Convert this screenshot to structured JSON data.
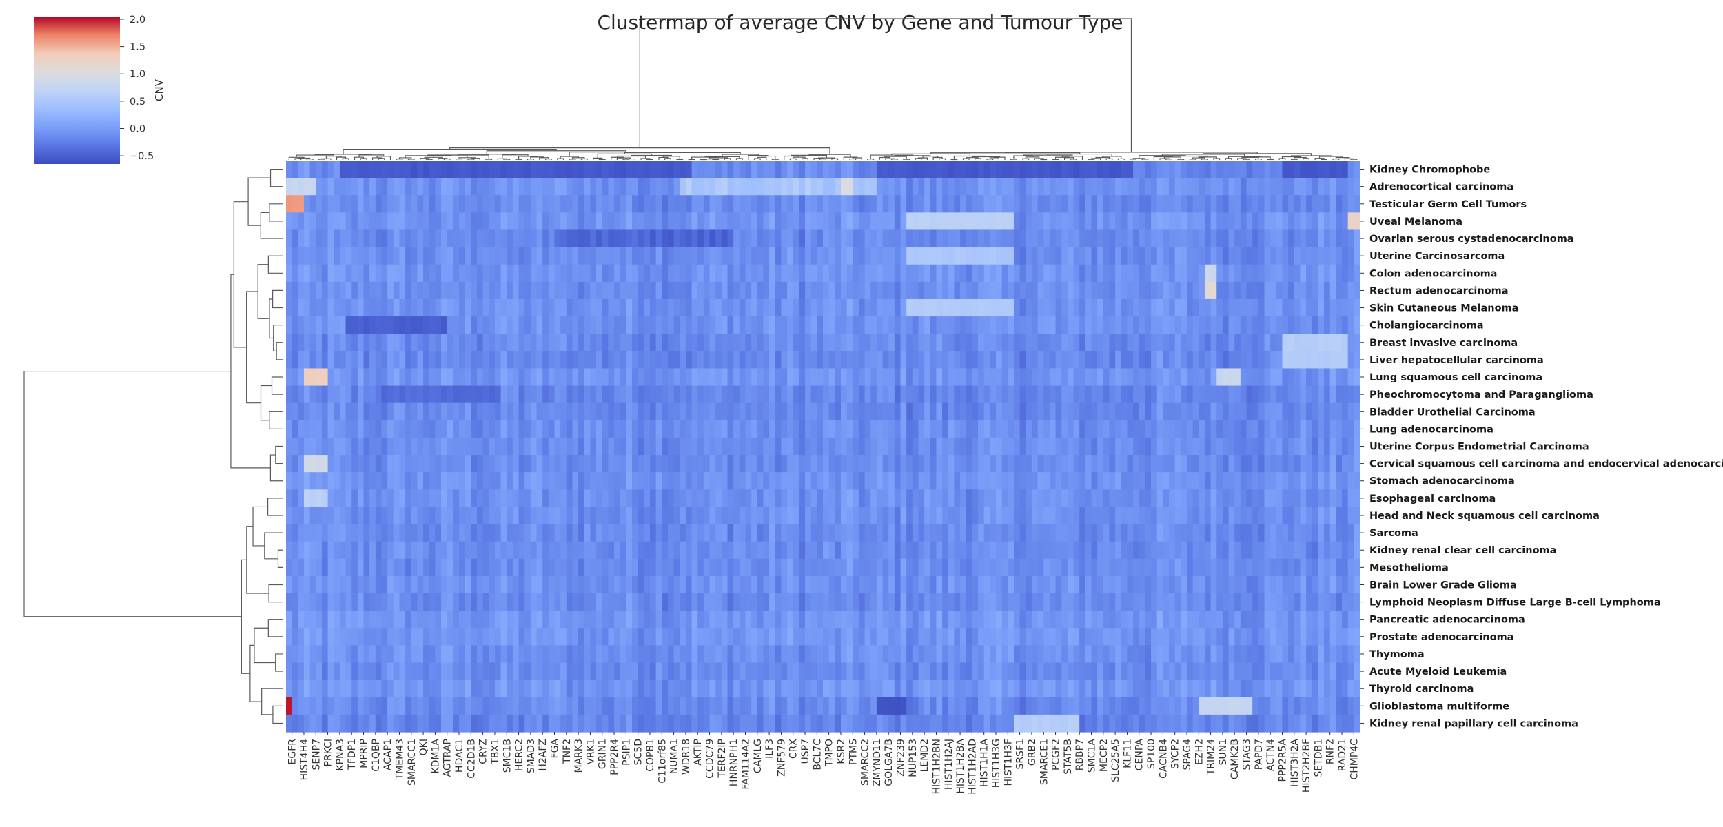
{
  "chart_data": {
    "type": "heatmap",
    "title": "Clustermap of average CNV by Gene and Tumour Type",
    "colorbar": {
      "label": "CNV",
      "ticks": [
        "2.0",
        "1.5",
        "1.0",
        "0.5",
        "0.0",
        "−0.5"
      ],
      "tick_values": [
        2.0,
        1.5,
        1.0,
        0.5,
        0.0,
        -0.5
      ],
      "vmin": -0.65,
      "vmax": 2.05,
      "colormap": "coolwarm",
      "low_color": "#3b4cc0",
      "mid_color": "#dddddd",
      "high_color": "#b40426"
    },
    "rows": [
      "Kidney Chromophobe",
      "Adrenocortical carcinoma",
      "Testicular Germ Cell Tumors",
      "Uveal Melanoma",
      "Ovarian serous cystadenocarcinoma",
      "Uterine Carcinosarcoma",
      "Colon adenocarcinoma",
      "Rectum adenocarcinoma",
      "Skin Cutaneous Melanoma",
      "Cholangiocarcinoma",
      "Breast invasive carcinoma",
      "Liver hepatocellular carcinoma",
      "Lung squamous cell carcinoma",
      "Pheochromocytoma and Paraganglioma",
      "Bladder Urothelial Carcinoma",
      "Lung adenocarcinoma",
      "Uterine Corpus Endometrial Carcinoma",
      "Cervical squamous cell carcinoma and endocervical adenocarcinoma",
      "Stomach adenocarcinoma",
      "Esophageal carcinoma",
      "Head and Neck squamous cell carcinoma",
      "Sarcoma",
      "Kidney renal clear cell carcinoma",
      "Mesothelioma",
      "Brain Lower Grade Glioma",
      "Lymphoid Neoplasm Diffuse Large B-cell Lymphoma",
      "Pancreatic adenocarcinoma",
      "Prostate adenocarcinoma",
      "Thymoma",
      "Acute Myeloid Leukemia",
      "Thyroid carcinoma",
      "Glioblastoma multiforme",
      "Kidney renal papillary cell carcinoma"
    ],
    "column_labels": [
      "EGFR",
      "HIST4H4",
      "SENP7",
      "PRKCI",
      "KPNA3",
      "TFDP1",
      "MPRIP",
      "C1QBP",
      "ACAP1",
      "TMEM43",
      "SMARCC1",
      "QKI",
      "KDM1A",
      "AGTRAP",
      "HDAC1",
      "CC2D1B",
      "CRYZ",
      "TBX1",
      "SMC1B",
      "HERC2",
      "SMAD3",
      "H2AFZ",
      "FGA",
      "TNF2",
      "MARK3",
      "VRK1",
      "GRIN1",
      "PPP2R4",
      "PSIP1",
      "SC5D",
      "COPB1",
      "C11orf85",
      "NUMA1",
      "WDR18",
      "AKTIP",
      "CCDC79",
      "TERF2IP",
      "HNRNPH1",
      "FAM114A2",
      "CAMLG",
      "ILF3",
      "ZNF579",
      "CRX",
      "USP7",
      "BCL7C",
      "TMPO",
      "KSR2",
      "PTMS",
      "SMARCC2",
      "ZMYND11",
      "GOLGA7B",
      "ZNF239",
      "NUP153",
      "LEMD2",
      "HIST1H2BN",
      "HIST1H2AJ",
      "HIST1H2BA",
      "HIST1H2AD",
      "HIST1H1A",
      "HIST1H3G",
      "HIST1H3F",
      "SRSF1",
      "GRB2",
      "SMARCE1",
      "PCGF2",
      "STAT5B",
      "RBBP7",
      "SMC1A",
      "MECP2",
      "SLC25A5",
      "KLF11",
      "CENPA",
      "SP100",
      "CACNB4",
      "SYCP2",
      "SPAG4",
      "EZH2",
      "TRIM24",
      "SUN1",
      "CAMK2B",
      "STAG3",
      "PAPD7",
      "ACTN4",
      "PPP2R5A",
      "HIST3H2A",
      "HIST2H2BF",
      "SETDB1",
      "RNF2",
      "RAD21",
      "CHMP4C"
    ],
    "n_columns": 180
  }
}
